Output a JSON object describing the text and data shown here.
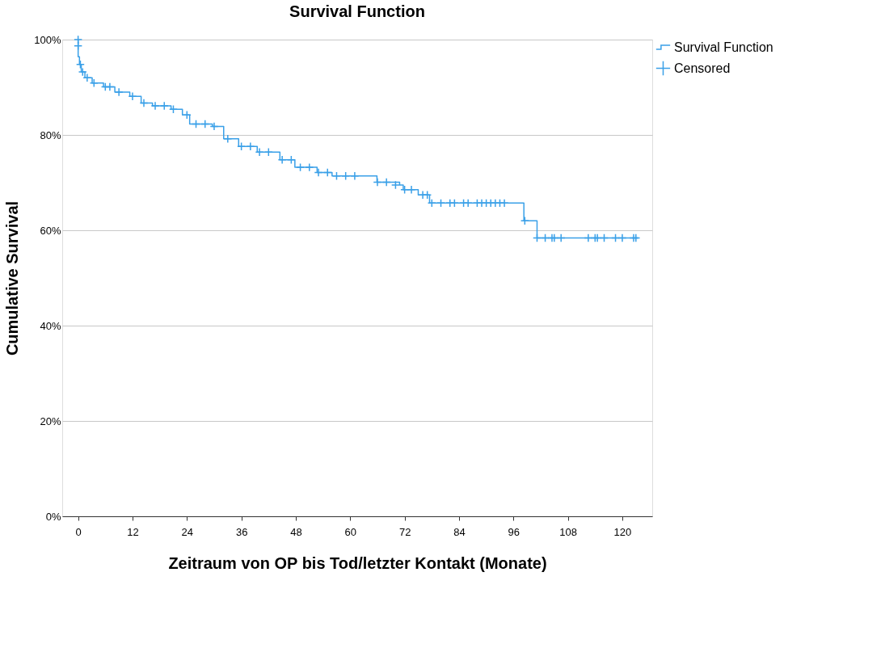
{
  "chart_data": {
    "type": "step",
    "title": "Survival Function",
    "xlabel": "Zeitraum von OP bis Tod/letzter Kontakt (Monate)",
    "ylabel": "Cumulative Survival",
    "xlim": [
      -3.5,
      126.6
    ],
    "xticks": [
      0,
      12,
      24,
      36,
      48,
      60,
      72,
      84,
      96,
      108,
      120
    ],
    "ylim": [
      0,
      100
    ],
    "yticks": [
      {
        "value": 0,
        "label": "0%"
      },
      {
        "value": 20,
        "label": "20%"
      },
      {
        "value": 40,
        "label": "40%"
      },
      {
        "value": 60,
        "label": "60%"
      },
      {
        "value": 80,
        "label": "80%"
      },
      {
        "value": 100,
        "label": "100%"
      }
    ],
    "grid": "y",
    "legend": "top right",
    "series": [
      {
        "name": "Survival Function",
        "color": "#3aa0e8",
        "x": [
          0,
          0.01,
          0.3,
          0.7,
          1.5,
          3.1,
          5.6,
          8.1,
          11.4,
          13.9,
          16.4,
          20.5,
          23,
          24.6,
          29.6,
          32.1,
          35.4,
          39.5,
          44.5,
          47.8,
          52.7,
          56,
          65.9,
          70.9,
          71.7,
          75,
          77.5,
          98.3,
          101.2,
          123.5
        ],
        "values": [
          100,
          96.4,
          94.8,
          93.2,
          92,
          90.9,
          90.1,
          89,
          88.1,
          86.7,
          86.1,
          85.4,
          84.2,
          82.3,
          81.8,
          79.2,
          77.6,
          76.4,
          74.8,
          73.2,
          72.1,
          71.4,
          70.1,
          69.5,
          68.5,
          67.4,
          65.7,
          62,
          58.4,
          58.4
        ]
      },
      {
        "name": "Censored",
        "type": "scatter",
        "color": "#3aa0e8",
        "marker": "cross",
        "x": [
          0,
          0,
          0.5,
          1,
          2,
          3.5,
          6,
          7,
          9,
          12,
          14.5,
          17,
          19,
          21,
          24,
          26,
          28,
          30,
          33,
          36,
          38,
          40,
          42,
          45,
          47,
          49,
          51,
          53,
          55,
          57,
          59,
          61,
          66,
          68,
          70,
          72,
          73.5,
          76,
          77,
          78,
          80,
          82,
          83,
          85,
          86,
          88,
          89,
          90,
          91,
          92,
          93,
          94,
          98.5,
          101.2,
          103,
          104.5,
          105,
          106.5,
          112.5,
          114,
          114.5,
          116,
          118.5,
          120,
          122.5,
          123
        ],
        "values": [
          100,
          98.7,
          94.8,
          93.2,
          92,
          90.9,
          90.1,
          90.1,
          89,
          88.1,
          86.7,
          86.1,
          86.1,
          85.4,
          84.2,
          82.3,
          82.3,
          81.8,
          79.2,
          77.6,
          77.6,
          76.4,
          76.4,
          74.8,
          74.8,
          73.2,
          73.2,
          72.1,
          72.1,
          71.4,
          71.4,
          71.4,
          70.1,
          70.1,
          69.5,
          68.5,
          68.5,
          67.4,
          67.4,
          65.7,
          65.7,
          65.7,
          65.7,
          65.7,
          65.7,
          65.7,
          65.7,
          65.7,
          65.7,
          65.7,
          65.7,
          65.7,
          62,
          58.4,
          58.4,
          58.4,
          58.4,
          58.4,
          58.4,
          58.4,
          58.4,
          58.4,
          58.4,
          58.4,
          58.4,
          58.4
        ]
      }
    ]
  }
}
